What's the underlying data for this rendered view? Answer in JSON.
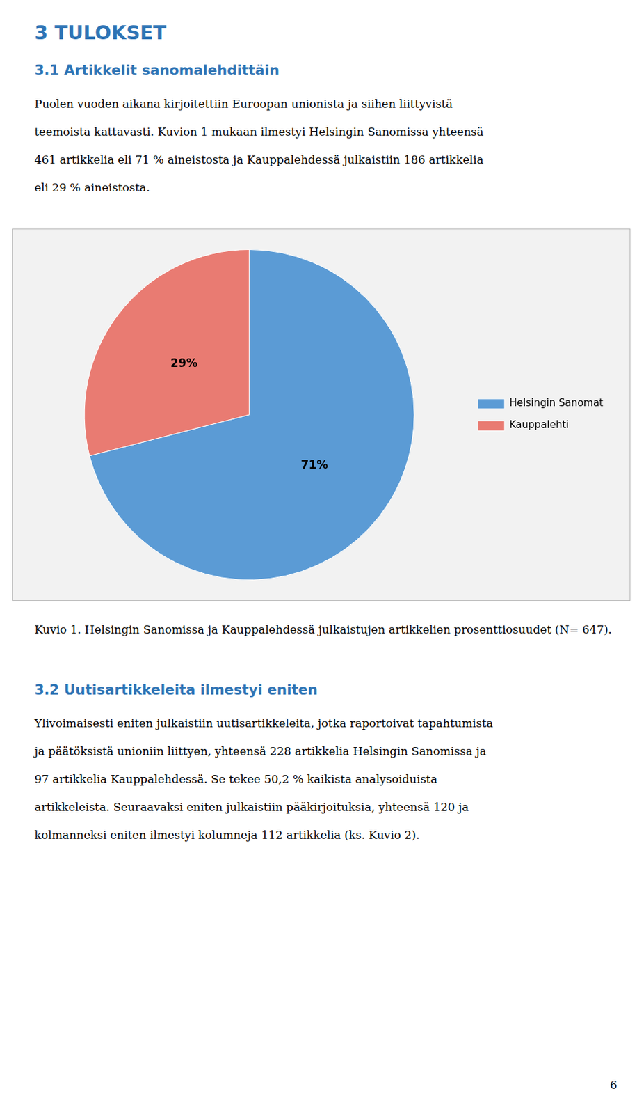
{
  "heading": "3 TULOKSET",
  "subheading1": "3.1 Artikkelit sanomalehdittäin",
  "paragraph1": [
    "Puolen vuoden aikana kirjoitettiin Euroopan unionista ja siihen liittyvistä",
    "teemoista kattavasti. Kuvion 1 mukaan ilmestyi Helsingin Sanomissa yhteensä",
    "461 artikkelia eli 71 % aineistosta ja Kauppalehdessä julkaistiin 186 artikkelia",
    "eli 29 % aineistosta."
  ],
  "subheading2": "3.2 Uutisartikkeleita ilmestyi eniten",
  "paragraph2": [
    "Ylivoimaisesti eniten julkaistiin uutisartikkeleita, jotka raportoivat tapahtumista",
    "ja päätöksistä unioniin liittyen, yhteensä 228 artikkelia Helsingin Sanomissa ja",
    "97 artikkelia Kauppalehdessä. Se tekee 50,2 % kaikista analysoiduista",
    "artikkeleista. Seuraavaksi eniten julkaistiin pääkirjoituksia, yhteensä 120 ja",
    "kolmanneksi eniten ilmestyi kolumneja 112 artikkelia (ks. Kuvio 2)."
  ],
  "page_number": "6",
  "chart_data": {
    "type": "pie",
    "title": "Kuvio 1. Helsingin Sanomissa ja Kauppalehdessä julkaistujen artikkelien prosenttiosuudet (N= 647).",
    "categories": [
      "Helsingin Sanomat",
      "Kauppalehti"
    ],
    "values": [
      71,
      29
    ],
    "value_labels": [
      "71%",
      "29%"
    ],
    "colors": [
      "#5B9BD5",
      "#E97B72"
    ],
    "data_labels": true,
    "legend": "right"
  }
}
